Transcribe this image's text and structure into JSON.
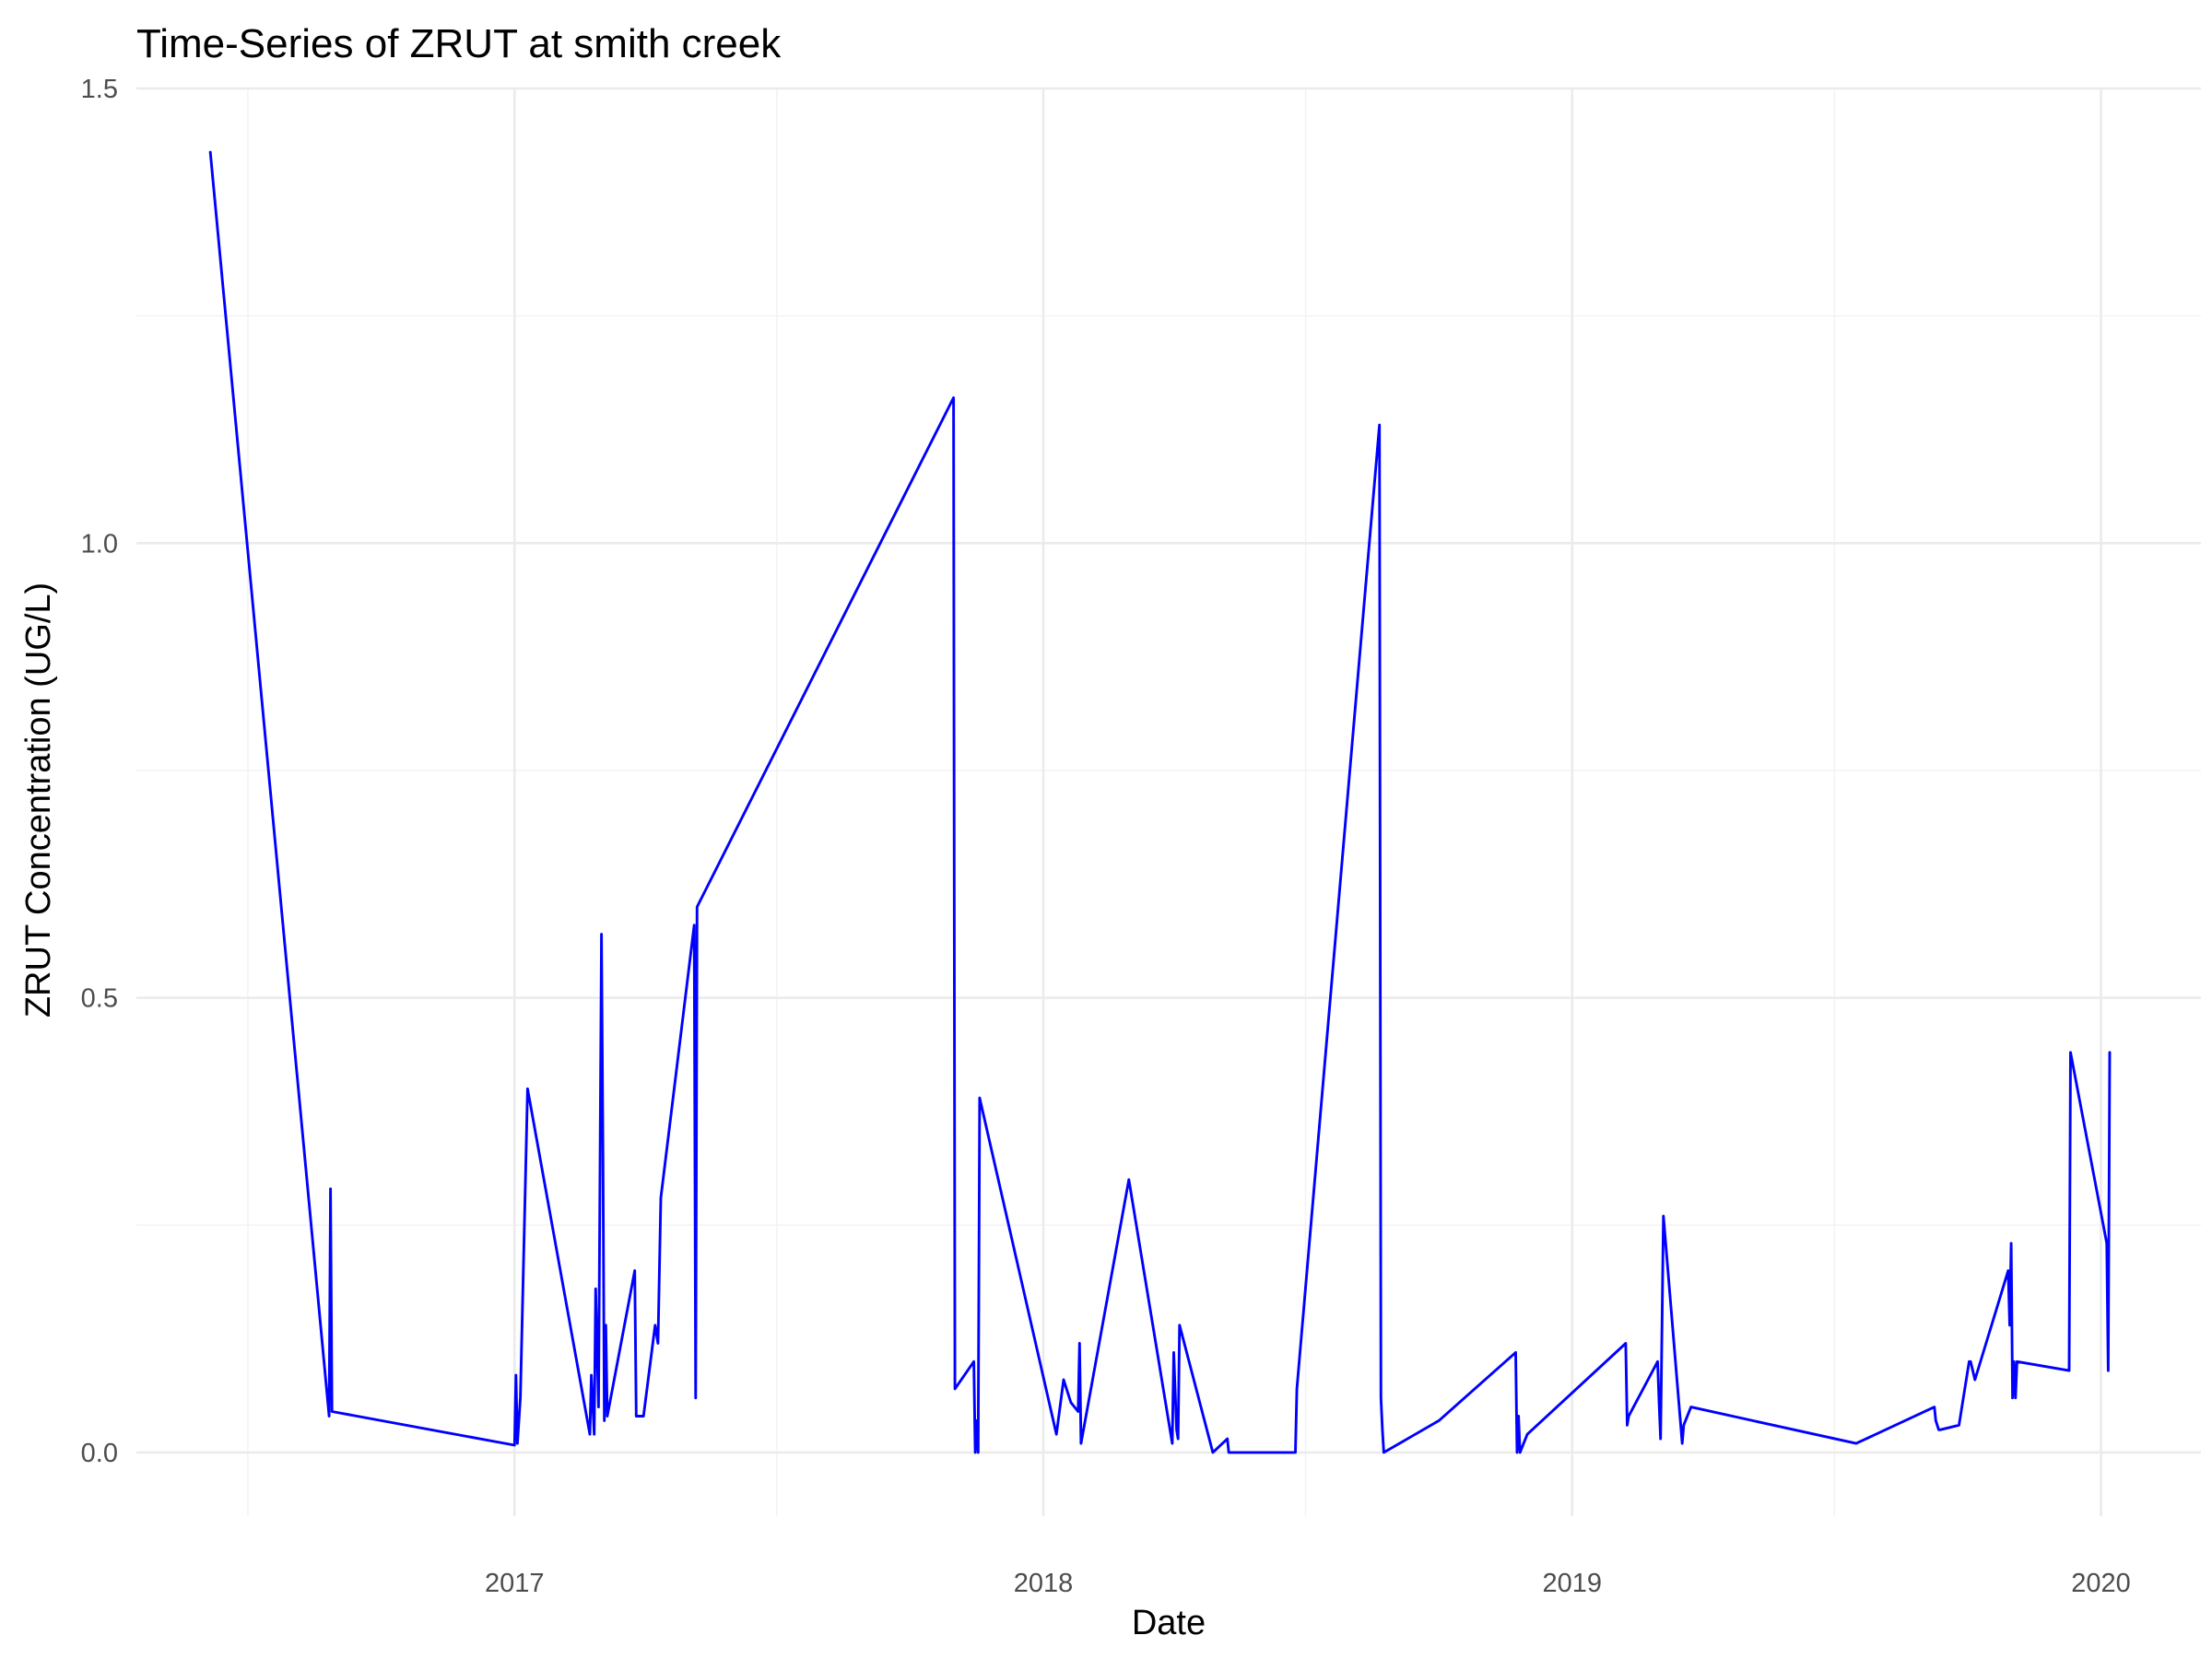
{
  "chart_data": {
    "type": "line",
    "title": "Time-Series of ZRUT at smith creek",
    "xlabel": "Date",
    "ylabel": "ZRUT Concentration (UG/L)",
    "x_ticks": [
      "2017",
      "2018",
      "2019",
      "2020"
    ],
    "y_ticks": [
      "0.0",
      "0.5",
      "1.0",
      "1.5"
    ],
    "xlim": [
      "2016-04-15",
      "2020-03-10"
    ],
    "ylim": [
      -0.07,
      1.5
    ],
    "grid": true,
    "line_color": "#0000ff",
    "series": [
      {
        "x": [
          "2016-06-05",
          "2016-08-26",
          "2016-08-27",
          "2016-08-28",
          "2017-01-01",
          "2017-01-02",
          "2017-01-03",
          "2017-01-05",
          "2017-01-10",
          "2017-02-22",
          "2017-02-23",
          "2017-02-25",
          "2017-02-26",
          "2017-02-28",
          "2017-03-02",
          "2017-03-03",
          "2017-03-04",
          "2017-03-05",
          "2017-03-06",
          "2017-03-25",
          "2017-03-26",
          "2017-03-29",
          "2017-03-31",
          "2017-04-08",
          "2017-04-10",
          "2017-04-12",
          "2017-05-05",
          "2017-05-06",
          "2017-05-07",
          "2017-10-31",
          "2017-11-01",
          "2017-11-14",
          "2017-11-15",
          "2017-11-16",
          "2017-11-17",
          "2017-11-18",
          "2018-01-10",
          "2018-01-15",
          "2018-01-20",
          "2018-01-25",
          "2018-01-26",
          "2018-01-27",
          "2018-03-01",
          "2018-03-31",
          "2018-04-01",
          "2018-04-03",
          "2018-04-04",
          "2018-04-05",
          "2018-04-28",
          "2018-05-08",
          "2018-05-09",
          "2018-06-24",
          "2018-06-25",
          "2018-08-21",
          "2018-08-22",
          "2018-08-23",
          "2018-08-24",
          "2018-10-01",
          "2018-11-23",
          "2018-11-24",
          "2018-11-25",
          "2018-11-26",
          "2018-12-01",
          "2019-02-07",
          "2019-02-08",
          "2019-02-09",
          "2019-03-01",
          "2019-03-02",
          "2019-03-03",
          "2019-03-05",
          "2019-03-18",
          "2019-03-19",
          "2019-03-24",
          "2019-07-16",
          "2019-09-08",
          "2019-09-09",
          "2019-09-10",
          "2019-09-11",
          "2019-09-12",
          "2019-09-25",
          "2019-10-02",
          "2019-10-03",
          "2019-10-06",
          "2019-10-29",
          "2019-10-30",
          "2019-10-31",
          "2019-11-01",
          "2019-11-02",
          "2019-11-03",
          "2019-11-04",
          "2019-12-10",
          "2019-12-11",
          "2020-01-05",
          "2020-01-06",
          "2020-01-07"
        ],
        "y": [
          1.43,
          0.04,
          0.29,
          0.045,
          0.008,
          0.085,
          0.01,
          0.06,
          0.4,
          0.02,
          0.085,
          0.02,
          0.18,
          0.05,
          0.57,
          0.33,
          0.035,
          0.14,
          0.04,
          0.2,
          0.04,
          0.04,
          0.04,
          0.14,
          0.12,
          0.28,
          0.58,
          0.06,
          0.6,
          1.16,
          0.07,
          0.1,
          0.0,
          0.035,
          0.0,
          0.39,
          0.02,
          0.08,
          0.055,
          0.045,
          0.12,
          0.01,
          0.3,
          0.01,
          0.11,
          0.025,
          0.015,
          0.14,
          0.0,
          0.015,
          0.0,
          0.0,
          0.07,
          1.13,
          0.06,
          0.025,
          0.0,
          0.035,
          0.11,
          0.0,
          0.04,
          0.0,
          0.02,
          0.12,
          0.03,
          0.04,
          0.1,
          0.055,
          0.015,
          0.26,
          0.01,
          0.03,
          0.05,
          0.01,
          0.05,
          0.035,
          0.03,
          0.025,
          0.025,
          0.03,
          0.1,
          0.1,
          0.08,
          0.2,
          0.14,
          0.23,
          0.06,
          0.1,
          0.06,
          0.1,
          0.09,
          0.44,
          0.23,
          0.09,
          0.44
        ]
      }
    ]
  }
}
